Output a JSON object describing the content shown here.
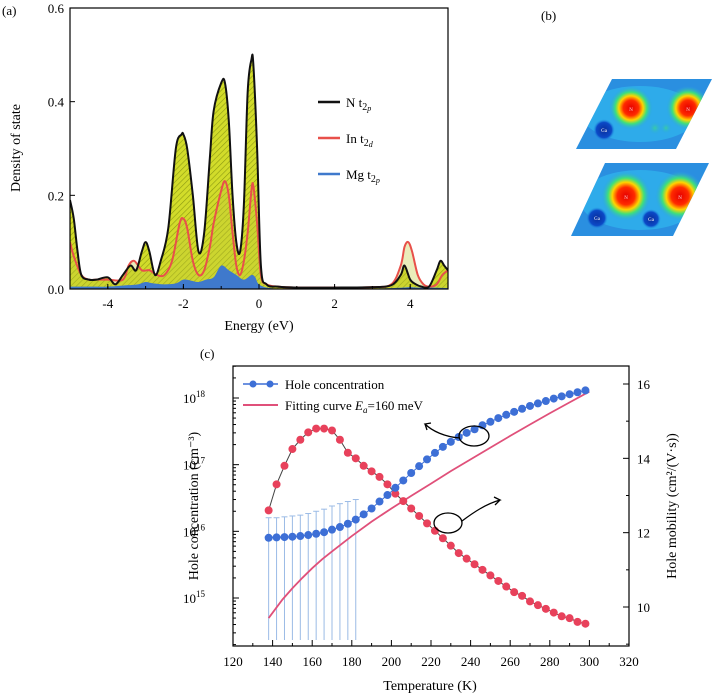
{
  "panel_labels": [
    "(a)",
    "(b)",
    "(c)"
  ],
  "colors": {
    "n_t2p": "#111111",
    "in_t2d": "#e8504a",
    "mg_t2p": "#3f79cc",
    "fill_hatch": "#c8d421",
    "concentration": "#3d6fd6",
    "mobility": "#e8415b",
    "fit": "#e0507a",
    "error_bar": "#9bbbe6"
  },
  "panel_b": {
    "maps": [
      {
        "left_atom": "Ga",
        "right_atoms": [
          "N",
          "N"
        ]
      },
      {
        "left_atom": "Ga",
        "right_atoms": [
          "N",
          "N"
        ],
        "extra_atom": "Ga"
      }
    ]
  },
  "chart_data": [
    {
      "type": "area",
      "panel": "(a)",
      "xlabel": "Energy (eV)",
      "ylabel": "Density of state",
      "xlim": [
        -5,
        5
      ],
      "ylim": [
        0,
        0.6
      ],
      "xticks": [
        "-4",
        "-2",
        "0",
        "2",
        "4"
      ],
      "yticks": [
        "0.0",
        "0.2",
        "0.4",
        "0.6"
      ],
      "legend_position": "right",
      "series": [
        {
          "name": "N t2p",
          "legend": {
            "main": "N t",
            "sub": "2",
            "subsub": "p"
          },
          "x": [
            -5.0,
            -4.9,
            -4.8,
            -4.7,
            -4.5,
            -4.3,
            -4.0,
            -3.8,
            -3.6,
            -3.4,
            -3.25,
            -3.1,
            -3.0,
            -2.9,
            -2.75,
            -2.6,
            -2.4,
            -2.2,
            -2.05,
            -2.0,
            -1.9,
            -1.75,
            -1.6,
            -1.45,
            -1.3,
            -1.2,
            -1.0,
            -0.9,
            -0.8,
            -0.7,
            -0.6,
            -0.5,
            -0.4,
            -0.3,
            -0.2,
            -0.15,
            -0.05,
            0.05,
            0.2,
            0.5,
            1.0,
            2.0,
            3.0,
            3.5,
            3.75,
            3.85,
            4.0,
            4.15,
            4.3,
            4.5,
            4.7,
            4.8,
            4.9,
            5.0
          ],
          "y": [
            0.19,
            0.15,
            0.08,
            0.03,
            0.02,
            0.02,
            0.025,
            0.01,
            0.03,
            0.05,
            0.04,
            0.08,
            0.1,
            0.08,
            0.03,
            0.06,
            0.13,
            0.3,
            0.33,
            0.33,
            0.3,
            0.2,
            0.08,
            0.12,
            0.28,
            0.38,
            0.44,
            0.44,
            0.36,
            0.2,
            0.1,
            0.08,
            0.18,
            0.42,
            0.49,
            0.48,
            0.3,
            0.05,
            0.01,
            0.005,
            0.003,
            0.003,
            0.004,
            0.008,
            0.03,
            0.05,
            0.02,
            0.01,
            0.005,
            0.005,
            0.04,
            0.06,
            0.05,
            0.04
          ]
        },
        {
          "name": "In t2d",
          "legend": {
            "main": "In t",
            "sub": "2",
            "subsub": "d"
          },
          "x": [
            -5.0,
            -4.9,
            -4.7,
            -4.5,
            -4.3,
            -4.0,
            -3.6,
            -3.45,
            -3.3,
            -3.1,
            -2.9,
            -2.7,
            -2.5,
            -2.3,
            -2.1,
            -2.0,
            -1.9,
            -1.75,
            -1.6,
            -1.45,
            -1.3,
            -1.2,
            -1.0,
            -0.9,
            -0.8,
            -0.7,
            -0.6,
            -0.5,
            -0.4,
            -0.3,
            -0.2,
            -0.15,
            -0.05,
            0.05,
            0.2,
            0.5,
            1.0,
            2.0,
            3.0,
            3.5,
            3.75,
            3.85,
            3.95,
            4.05,
            4.2,
            4.35,
            4.5,
            4.7,
            4.85,
            5.0
          ],
          "y": [
            0.1,
            0.07,
            0.03,
            0.02,
            0.02,
            0.02,
            0.02,
            0.05,
            0.06,
            0.04,
            0.04,
            0.03,
            0.03,
            0.06,
            0.14,
            0.15,
            0.13,
            0.06,
            0.03,
            0.04,
            0.09,
            0.14,
            0.21,
            0.23,
            0.2,
            0.12,
            0.05,
            0.03,
            0.06,
            0.12,
            0.21,
            0.22,
            0.14,
            0.03,
            0.01,
            0.005,
            0.003,
            0.003,
            0.004,
            0.01,
            0.05,
            0.09,
            0.1,
            0.08,
            0.03,
            0.01,
            0.005,
            0.01,
            0.03,
            0.04
          ]
        },
        {
          "name": "Mg t2p",
          "legend": {
            "main": "Mg t",
            "sub": "2",
            "subsub": "p"
          },
          "x": [
            -5.0,
            -4.5,
            -4.0,
            -3.5,
            -3.2,
            -3.0,
            -2.8,
            -2.5,
            -2.2,
            -2.0,
            -1.8,
            -1.6,
            -1.4,
            -1.2,
            -1.0,
            -0.8,
            -0.6,
            -0.4,
            -0.2,
            -0.1,
            0.0,
            0.3,
            1.0,
            3.0,
            3.8,
            4.0,
            4.2,
            4.6,
            5.0
          ],
          "y": [
            0.005,
            0.005,
            0.005,
            0.008,
            0.01,
            0.015,
            0.012,
            0.01,
            0.012,
            0.02,
            0.018,
            0.015,
            0.02,
            0.025,
            0.05,
            0.04,
            0.03,
            0.02,
            0.03,
            0.025,
            0.01,
            0.002,
            0.001,
            0.001,
            0.003,
            0.004,
            0.003,
            0.003,
            0.002
          ]
        }
      ]
    },
    {
      "type": "scatter",
      "panel": "(c)",
      "xlabel": "Temperature (K)",
      "ylabel_left": "Hole concentration (cm⁻³)",
      "ylabel_right": "Hole mobility (cm²/(V·s))",
      "xlim": [
        120,
        320
      ],
      "xticks": [
        "120",
        "140",
        "160",
        "180",
        "200",
        "220",
        "240",
        "260",
        "280",
        "300",
        "320"
      ],
      "y_left_scale": "log",
      "y_left_ticks": [
        {
          "base": "10",
          "exp": "15",
          "value": 1000000000000000.0
        },
        {
          "base": "10",
          "exp": "16",
          "value": 1e+16
        },
        {
          "base": "10",
          "exp": "17",
          "value": 1e+17
        },
        {
          "base": "10",
          "exp": "18",
          "value": 1e+18
        }
      ],
      "y_right_lim": [
        9,
        16.5
      ],
      "y_right_ticks": [
        "10",
        "12",
        "14",
        "16"
      ],
      "legend_position": "top-left",
      "legend": {
        "concentration": "Hole concentration",
        "fit_prefix": "Fitting curve ",
        "fit_E": "E",
        "fit_sub": "a",
        "fit_value": "=160 meV"
      },
      "series": [
        {
          "name": "Hole concentration",
          "axis": "left",
          "x": [
            138,
            142,
            146,
            150,
            154,
            158,
            162,
            166,
            170,
            174,
            178,
            182,
            186,
            190,
            194,
            198,
            202,
            206,
            210,
            214,
            218,
            222,
            226,
            230,
            234,
            238,
            242,
            246,
            250,
            254,
            258,
            262,
            266,
            270,
            274,
            278,
            282,
            286,
            290,
            294,
            298
          ],
          "y": [
            8000000000000000.0,
            8100000000000000.0,
            8200000000000000.0,
            8300000000000000.0,
            8500000000000000.0,
            8800000000000000.0,
            9200000000000000.0,
            9700000000000000.0,
            1.06e+16,
            1.16e+16,
            1.3e+16,
            1.5e+16,
            1.8e+16,
            2.2e+16,
            2.8e+16,
            3.5e+16,
            4.5e+16,
            5.8e+16,
            7.5e+16,
            9.5e+16,
            1.2e+17,
            1.5e+17,
            1.85e+17,
            2.2e+17,
            2.6e+17,
            3e+17,
            3.4e+17,
            3.9e+17,
            4.4e+17,
            5e+17,
            5.6e+17,
            6.2e+17,
            6.9e+17,
            7.6e+17,
            8.3e+17,
            9e+17,
            9.8e+17,
            1.06e+18,
            1.14e+18,
            1.22e+18,
            1.3e+18
          ],
          "error_upper": [
            1.6e+16,
            1.6e+16,
            1.65e+16,
            1.7e+16,
            1.75e+16,
            1.85e+16,
            2e+16,
            2.15e+16,
            2.4e+16,
            2.6e+16,
            2.8e+16,
            3e+16
          ]
        },
        {
          "name": "Hole mobility",
          "axis": "right",
          "x": [
            138,
            142,
            146,
            150,
            154,
            158,
            162,
            166,
            170,
            174,
            178,
            182,
            186,
            190,
            194,
            198,
            202,
            206,
            210,
            214,
            218,
            222,
            226,
            230,
            234,
            238,
            242,
            246,
            250,
            254,
            258,
            262,
            266,
            270,
            274,
            278,
            282,
            286,
            290,
            294,
            298
          ],
          "y": [
            12.6,
            13.3,
            13.8,
            14.25,
            14.5,
            14.7,
            14.8,
            14.8,
            14.75,
            14.5,
            14.15,
            14.0,
            13.8,
            13.65,
            13.5,
            13.3,
            13.05,
            12.85,
            12.65,
            12.45,
            12.25,
            12.05,
            11.85,
            11.65,
            11.45,
            11.3,
            11.15,
            11.0,
            10.85,
            10.7,
            10.55,
            10.4,
            10.3,
            10.15,
            10.05,
            9.95,
            9.85,
            9.75,
            9.7,
            9.6,
            9.55
          ]
        },
        {
          "name": "Fitting curve Ea=160 meV",
          "axis": "left",
          "style": "line",
          "x": [
            138,
            145,
            150,
            155,
            160,
            165,
            170,
            180,
            190,
            200,
            210,
            220,
            230,
            240,
            250,
            260,
            270,
            280,
            290,
            300
          ],
          "y": [
            500000000000000.0,
            950000000000000.0,
            1400000000000000.0,
            2000000000000000.0,
            2800000000000000.0,
            3800000000000000.0,
            5000000000000000.0,
            8500000000000000.0,
            1.4e+16,
            2.2e+16,
            3.4e+16,
            5.2e+16,
            8e+16,
            1.2e+17,
            1.8e+17,
            2.7e+17,
            4e+17,
            5.9e+17,
            8.6e+17,
            1.25e+18
          ]
        }
      ]
    }
  ]
}
